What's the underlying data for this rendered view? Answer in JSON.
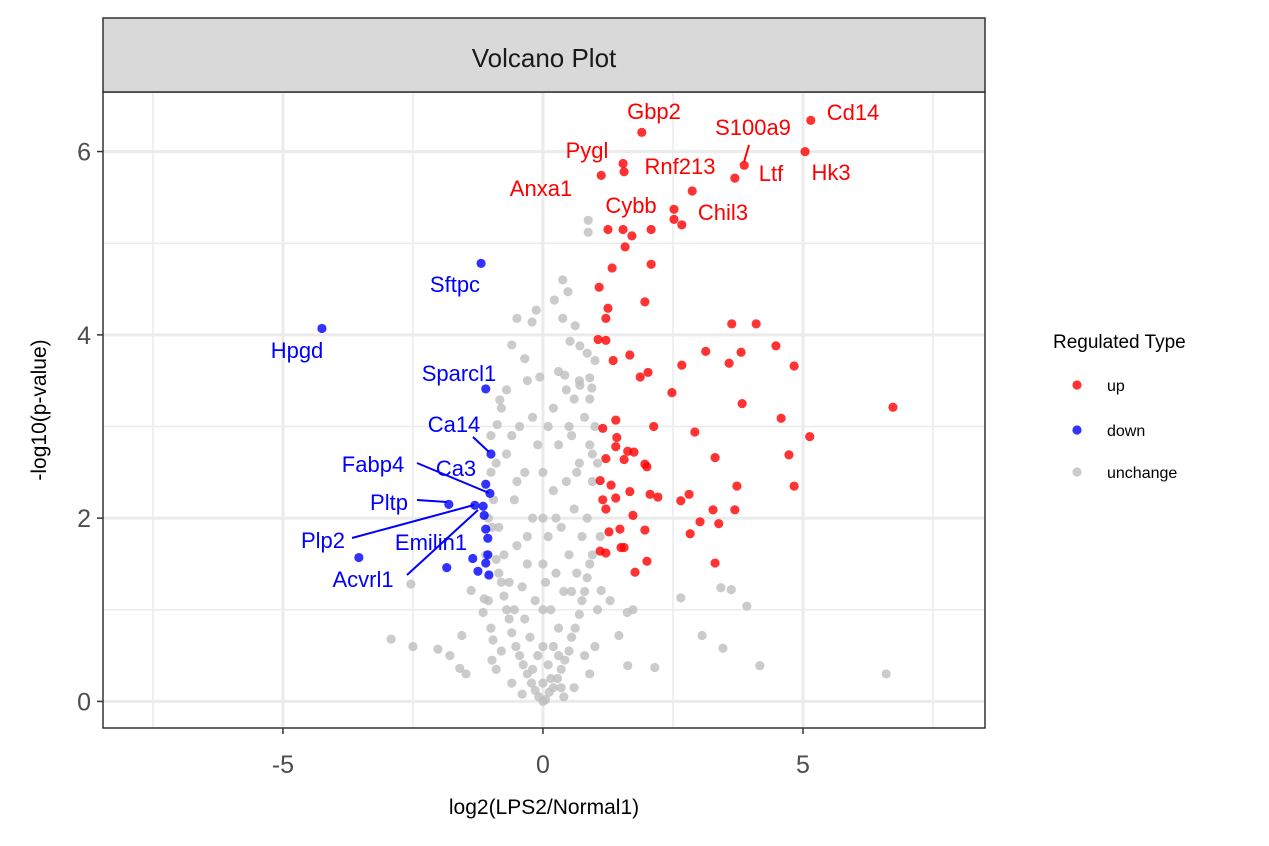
{
  "chart_data": {
    "type": "scatter",
    "title": "Volcano Plot",
    "xlabel": "log2(LPS2/Normal1)",
    "ylabel": "-log10(p-value)",
    "xlim": [
      -8.46,
      8.5
    ],
    "ylim": [
      -0.29,
      6.65
    ],
    "x_ticks": [
      -5,
      0,
      5
    ],
    "x_tick_labels": [
      "-5",
      "0",
      "5"
    ],
    "y_ticks": [
      0,
      2,
      4,
      6
    ],
    "y_tick_labels": [
      "0",
      "2",
      "4",
      "6"
    ],
    "grid": true,
    "legend": {
      "title": "Regulated Type",
      "placement": "right",
      "entries": [
        {
          "label": "up",
          "color": "#ff0000"
        },
        {
          "label": "down",
          "color": "#0000ff"
        },
        {
          "label": "unchange",
          "color": "#bebebe"
        }
      ]
    },
    "series": [
      {
        "name": "unchange",
        "color": "#bebebe",
        "points": [
          [
            0,
            0
          ],
          [
            0.05,
            0.02
          ],
          [
            -0.08,
            0.05
          ],
          [
            0.12,
            0.1
          ],
          [
            -0.15,
            0.12
          ],
          [
            0.2,
            0.15
          ],
          [
            -0.22,
            0.2
          ],
          [
            0.28,
            0.25
          ],
          [
            -0.3,
            0.3
          ],
          [
            0.35,
            0.35
          ],
          [
            -0.38,
            0.4
          ],
          [
            0.42,
            0.45
          ],
          [
            -0.45,
            0.5
          ],
          [
            0.5,
            0.55
          ],
          [
            -0.52,
            0.6
          ],
          [
            0.55,
            0.7
          ],
          [
            -0.6,
            0.75
          ],
          [
            0.62,
            0.8
          ],
          [
            -0.65,
            0.9
          ],
          [
            0.7,
            0.95
          ],
          [
            -0.7,
            1.0
          ],
          [
            0.75,
            1.1
          ],
          [
            -0.75,
            1.15
          ],
          [
            0.8,
            1.2
          ],
          [
            -0.8,
            1.3
          ],
          [
            0.85,
            1.35
          ],
          [
            -0.85,
            1.4
          ],
          [
            0.9,
            1.5
          ],
          [
            -0.9,
            1.55
          ],
          [
            0.95,
            1.6
          ],
          [
            0.1,
            0.4
          ],
          [
            -0.1,
            0.5
          ],
          [
            0.2,
            0.6
          ],
          [
            -0.25,
            0.7
          ],
          [
            0.3,
            0.8
          ],
          [
            -0.35,
            0.9
          ],
          [
            0.15,
            1.0
          ],
          [
            -0.15,
            1.1
          ],
          [
            0.4,
            1.2
          ],
          [
            -0.4,
            1.25
          ],
          [
            0.05,
            1.3
          ],
          [
            0.25,
            1.4
          ],
          [
            -0.3,
            1.5
          ],
          [
            0.5,
            1.6
          ],
          [
            -0.5,
            1.7
          ],
          [
            0.1,
            1.8
          ],
          [
            0.35,
            1.9
          ],
          [
            -0.2,
            2.0
          ],
          [
            0.6,
            2.1
          ],
          [
            -0.55,
            2.2
          ],
          [
            0.2,
            2.3
          ],
          [
            0.45,
            2.4
          ],
          [
            -0.35,
            2.5
          ],
          [
            0.7,
            2.6
          ],
          [
            -0.7,
            2.7
          ],
          [
            0.3,
            2.8
          ],
          [
            0.55,
            2.9
          ],
          [
            -0.45,
            3.0
          ],
          [
            0.8,
            3.1
          ],
          [
            -0.8,
            3.2
          ],
          [
            0.6,
            3.3
          ],
          [
            -0.6,
            2.9
          ],
          [
            0.9,
            2.8
          ],
          [
            -0.9,
            2.6
          ],
          [
            0.95,
            2.4
          ],
          [
            -0.95,
            2.2
          ],
          [
            0.85,
            2.0
          ],
          [
            -0.85,
            1.9
          ],
          [
            0.75,
            1.8
          ],
          [
            -0.75,
            1.6
          ],
          [
            0.65,
            1.4
          ],
          [
            -0.65,
            1.3
          ],
          [
            0.0,
            0.2
          ],
          [
            0.0,
            0.6
          ],
          [
            0.0,
            1.0
          ],
          [
            0.0,
            1.5
          ],
          [
            0.0,
            2.0
          ],
          [
            0.0,
            2.5
          ],
          [
            -0.1,
            2.8
          ],
          [
            0.1,
            3.0
          ],
          [
            0.45,
            3.4
          ],
          [
            -0.3,
            3.5
          ],
          [
            0.3,
            3.6
          ],
          [
            0.9,
            3.3
          ],
          [
            1.0,
            3.0
          ],
          [
            0.95,
            2.7
          ],
          [
            -1.0,
            2.5
          ],
          [
            -1.0,
            2.9
          ],
          [
            -0.98,
            1.9
          ],
          [
            1.0,
            0.6
          ],
          [
            -1.0,
            0.8
          ],
          [
            0.9,
            0.3
          ],
          [
            -0.9,
            0.35
          ],
          [
            0.6,
            0.15
          ],
          [
            -0.6,
            0.2
          ],
          [
            0.4,
            0.05
          ],
          [
            -0.4,
            0.08
          ],
          [
            0.3,
            0.5
          ],
          [
            -0.2,
            0.35
          ],
          [
            0.8,
            0.5
          ],
          [
            -0.8,
            0.55
          ],
          [
            1.05,
            1.0
          ],
          [
            -1.05,
            1.1
          ],
          [
            1.1,
            1.8
          ],
          [
            -1.1,
            1.6
          ],
          [
            1.05,
            2.6
          ],
          [
            -1.05,
            2.0
          ],
          [
            0.7,
            3.5
          ],
          [
            -0.7,
            3.4
          ],
          [
            0.2,
            3.2
          ],
          [
            -0.2,
            3.1
          ],
          [
            0.85,
            3.8
          ],
          [
            0.5,
            3.0
          ],
          [
            0.65,
            2.5
          ],
          [
            -0.5,
            2.4
          ],
          [
            0.25,
            2.0
          ],
          [
            -0.3,
            1.8
          ],
          [
            0.55,
            1.2
          ],
          [
            -0.55,
            1.0
          ],
          [
            0.35,
            0.15
          ],
          [
            0.15,
            0.25
          ],
          [
            0.87,
            5.25
          ],
          [
            0.87,
            5.12
          ],
          [
            0.38,
            4.6
          ],
          [
            0.48,
            4.47
          ],
          [
            0.22,
            4.38
          ],
          [
            -0.5,
            4.18
          ],
          [
            -0.21,
            4.14
          ],
          [
            -0.13,
            4.27
          ],
          [
            0.38,
            4.18
          ],
          [
            0.62,
            4.1
          ],
          [
            0.71,
            3.88
          ],
          [
            0.52,
            3.93
          ],
          [
            1.0,
            3.72
          ],
          [
            0.9,
            3.53
          ],
          [
            0.94,
            3.42
          ],
          [
            -0.6,
            3.89
          ],
          [
            -0.35,
            3.74
          ],
          [
            -0.06,
            3.54
          ],
          [
            0.42,
            3.56
          ],
          [
            0.71,
            3.45
          ],
          [
            -0.83,
            3.29
          ],
          [
            -0.88,
            3.02
          ],
          [
            1.12,
            1.21
          ],
          [
            1.29,
            1.1
          ],
          [
            1.46,
            0.72
          ],
          [
            1.63,
            0.39
          ],
          [
            2.15,
            0.37
          ],
          [
            2.65,
            1.13
          ],
          [
            3.06,
            0.72
          ],
          [
            3.42,
            1.24
          ],
          [
            3.62,
            1.22
          ],
          [
            3.92,
            1.04
          ],
          [
            3.46,
            0.58
          ],
          [
            4.17,
            0.39
          ],
          [
            6.6,
            0.3
          ],
          [
            1.62,
            0.97
          ],
          [
            1.73,
            1.0
          ],
          [
            -2.92,
            0.68
          ],
          [
            -2.5,
            0.6
          ],
          [
            -2.54,
            1.28
          ],
          [
            -2.02,
            0.57
          ],
          [
            -1.79,
            0.5
          ],
          [
            -1.56,
            0.72
          ],
          [
            -1.6,
            0.36
          ],
          [
            -1.48,
            0.3
          ],
          [
            -1.38,
            1.21
          ],
          [
            -1.13,
            1.12
          ],
          [
            -0.98,
            0.45
          ],
          [
            -0.96,
            0.67
          ],
          [
            -1.15,
            0.97
          ]
        ]
      },
      {
        "name": "up",
        "color": "#ff0000",
        "points": [
          [
            5.15,
            6.34
          ],
          [
            5.04,
            6.0
          ],
          [
            1.9,
            6.21
          ],
          [
            3.87,
            5.85
          ],
          [
            3.69,
            5.71
          ],
          [
            1.54,
            5.87
          ],
          [
            1.56,
            5.78
          ],
          [
            1.12,
            5.74
          ],
          [
            2.87,
            5.57
          ],
          [
            2.52,
            5.37
          ],
          [
            2.52,
            5.26
          ],
          [
            2.67,
            5.2
          ],
          [
            1.25,
            5.15
          ],
          [
            1.54,
            5.15
          ],
          [
            1.71,
            5.08
          ],
          [
            2.08,
            5.15
          ],
          [
            1.58,
            4.96
          ],
          [
            1.33,
            4.73
          ],
          [
            2.08,
            4.77
          ],
          [
            1.08,
            4.52
          ],
          [
            1.25,
            4.29
          ],
          [
            1.96,
            4.36
          ],
          [
            1.21,
            4.18
          ],
          [
            3.63,
            4.12
          ],
          [
            4.1,
            4.12
          ],
          [
            1.21,
            3.94
          ],
          [
            1.06,
            3.95
          ],
          [
            3.13,
            3.82
          ],
          [
            3.81,
            3.81
          ],
          [
            4.48,
            3.88
          ],
          [
            4.83,
            3.66
          ],
          [
            3.58,
            3.69
          ],
          [
            1.35,
            3.72
          ],
          [
            1.67,
            3.78
          ],
          [
            1.87,
            3.54
          ],
          [
            2.67,
            3.67
          ],
          [
            2.02,
            3.59
          ],
          [
            2.48,
            3.37
          ],
          [
            6.73,
            3.21
          ],
          [
            3.83,
            3.25
          ],
          [
            4.58,
            3.09
          ],
          [
            5.13,
            2.89
          ],
          [
            4.73,
            2.69
          ],
          [
            4.83,
            2.35
          ],
          [
            3.69,
            2.09
          ],
          [
            2.13,
            3.0
          ],
          [
            2.92,
            2.94
          ],
          [
            3.31,
            2.66
          ],
          [
            3.73,
            2.35
          ],
          [
            2.81,
            2.26
          ],
          [
            3.27,
            2.09
          ],
          [
            2.65,
            2.19
          ],
          [
            3.38,
            1.94
          ],
          [
            3.02,
            1.96
          ],
          [
            2.83,
            1.83
          ],
          [
            3.31,
            1.51
          ],
          [
            1.4,
            3.07
          ],
          [
            1.15,
            2.98
          ],
          [
            1.42,
            2.88
          ],
          [
            1.4,
            2.78
          ],
          [
            1.63,
            2.73
          ],
          [
            1.75,
            2.72
          ],
          [
            1.56,
            2.64
          ],
          [
            1.96,
            2.59
          ],
          [
            2.0,
            2.56
          ],
          [
            1.21,
            2.65
          ],
          [
            1.1,
            2.41
          ],
          [
            1.31,
            2.36
          ],
          [
            1.4,
            2.22
          ],
          [
            1.67,
            2.29
          ],
          [
            2.06,
            2.26
          ],
          [
            2.21,
            2.23
          ],
          [
            1.15,
            2.2
          ],
          [
            1.21,
            2.1
          ],
          [
            1.73,
            2.03
          ],
          [
            1.96,
            1.87
          ],
          [
            1.1,
            1.64
          ],
          [
            1.21,
            1.62
          ],
          [
            1.77,
            1.41
          ],
          [
            2.0,
            1.53
          ],
          [
            1.5,
            1.68
          ],
          [
            1.27,
            1.85
          ],
          [
            1.48,
            1.88
          ],
          [
            1.56,
            1.68
          ]
        ]
      },
      {
        "name": "down",
        "color": "#0000ff",
        "points": [
          [
            -4.25,
            4.07
          ],
          [
            -1.19,
            4.78
          ],
          [
            -1.1,
            3.41
          ],
          [
            -1.0,
            2.7
          ],
          [
            -1.1,
            2.37
          ],
          [
            -1.02,
            2.27
          ],
          [
            -1.81,
            2.15
          ],
          [
            -1.31,
            2.14
          ],
          [
            -1.15,
            2.13
          ],
          [
            -1.13,
            2.03
          ],
          [
            -1.1,
            1.88
          ],
          [
            -1.06,
            1.78
          ],
          [
            -3.54,
            1.57
          ],
          [
            -1.85,
            1.46
          ],
          [
            -1.35,
            1.56
          ],
          [
            -1.1,
            1.51
          ],
          [
            -1.06,
            1.6
          ],
          [
            -1.25,
            1.42
          ],
          [
            -1.04,
            1.38
          ]
        ]
      }
    ],
    "annotations": [
      {
        "label": "Gbp2",
        "color": "#ff0000"
      },
      {
        "label": "S100a9",
        "color": "#ff0000"
      },
      {
        "label": "Cd14",
        "color": "#ff0000"
      },
      {
        "label": "Pygl",
        "color": "#ff0000"
      },
      {
        "label": "Rnf213",
        "color": "#ff0000"
      },
      {
        "label": "Ltf",
        "color": "#ff0000"
      },
      {
        "label": "Hk3",
        "color": "#ff0000"
      },
      {
        "label": "Anxa1",
        "color": "#ff0000"
      },
      {
        "label": "Cybb",
        "color": "#ff0000"
      },
      {
        "label": "Chil3",
        "color": "#ff0000"
      },
      {
        "label": "Sftpc",
        "color": "#0000ff"
      },
      {
        "label": "Hpgd",
        "color": "#0000ff"
      },
      {
        "label": "Sparcl1",
        "color": "#0000ff"
      },
      {
        "label": "Ca14",
        "color": "#0000ff"
      },
      {
        "label": "Fabp4",
        "color": "#0000ff"
      },
      {
        "label": "Ca3",
        "color": "#0000ff"
      },
      {
        "label": "Pltp",
        "color": "#0000ff"
      },
      {
        "label": "Plp2",
        "color": "#0000ff"
      },
      {
        "label": "Emilin1",
        "color": "#0000ff"
      },
      {
        "label": "Acvrl1",
        "color": "#0000ff"
      }
    ]
  }
}
